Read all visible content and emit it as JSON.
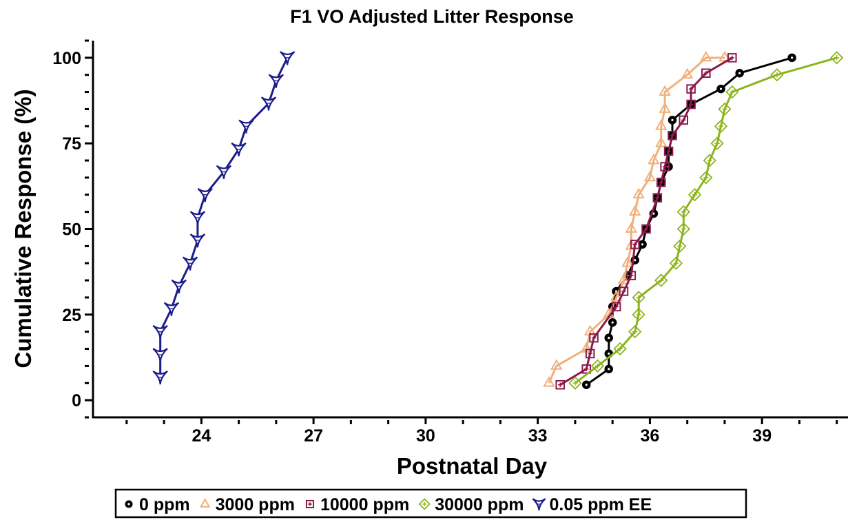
{
  "chart_data": {
    "type": "line",
    "title": "F1 VO Adjusted Litter Response",
    "xlabel": "Postnatal Day",
    "ylabel": "Cumulative Response (%)",
    "xlim": [
      21.1,
      41.3
    ],
    "ylim": [
      -5,
      105
    ],
    "xticks": [
      24,
      27,
      30,
      33,
      36,
      39
    ],
    "xtick_labels": [
      "24",
      "27",
      "30",
      "33",
      "36",
      "39"
    ],
    "yticks": [
      0,
      25,
      50,
      75,
      100
    ],
    "ytick_labels": [
      "0",
      "25",
      "50",
      "75",
      "100"
    ],
    "grid": false,
    "legend_position": "bottom",
    "series": [
      {
        "name": "0 ppm",
        "color": "#000000",
        "marker": "circle",
        "x": [
          34.3,
          34.9,
          34.9,
          34.9,
          35.0,
          35.0,
          35.1,
          35.4,
          35.6,
          35.8,
          35.9,
          36.1,
          36.2,
          36.3,
          36.5,
          36.5,
          36.6,
          36.6,
          37.1,
          37.9,
          38.4,
          39.8
        ],
        "y": [
          4.5,
          9.1,
          13.6,
          18.2,
          22.7,
          27.3,
          31.8,
          36.4,
          40.9,
          45.5,
          50.0,
          54.5,
          59.1,
          63.6,
          68.2,
          72.7,
          77.3,
          81.8,
          86.4,
          90.9,
          95.5,
          100.0
        ]
      },
      {
        "name": "3000 ppm",
        "color": "#f0b07a",
        "marker": "triangle",
        "x": [
          33.3,
          33.5,
          34.3,
          34.4,
          34.9,
          35.1,
          35.3,
          35.4,
          35.5,
          35.5,
          35.6,
          35.7,
          36.0,
          36.1,
          36.3,
          36.3,
          36.4,
          36.4,
          37.0,
          37.5,
          38.0
        ],
        "y": [
          5,
          10,
          15,
          20,
          25,
          30,
          35,
          40,
          45,
          50,
          55,
          60,
          65,
          70,
          75,
          80,
          85,
          90,
          95,
          100,
          100
        ]
      },
      {
        "name": "10000 ppm",
        "color": "#8b1a4a",
        "marker": "square",
        "x": [
          33.6,
          34.3,
          34.4,
          34.5,
          35.1,
          35.3,
          35.5,
          35.6,
          35.9,
          36.2,
          36.3,
          36.4,
          36.5,
          36.6,
          36.9,
          37.1,
          37.1,
          37.5,
          38.2
        ],
        "y": [
          4.5,
          9.1,
          13.6,
          18.2,
          27.3,
          31.8,
          36.4,
          45.5,
          50.0,
          59.1,
          63.6,
          68.2,
          72.7,
          77.3,
          81.8,
          86.4,
          90.9,
          95.5,
          100.0
        ]
      },
      {
        "name": "30000 ppm",
        "color": "#8db31c",
        "marker": "diamond",
        "x": [
          34.0,
          34.6,
          35.2,
          35.6,
          35.7,
          35.7,
          36.3,
          36.7,
          36.8,
          36.9,
          36.9,
          37.2,
          37.5,
          37.6,
          37.8,
          37.9,
          38.0,
          38.2,
          39.4,
          41.0
        ],
        "y": [
          5,
          10,
          15,
          20,
          25,
          30,
          35,
          40,
          45,
          50,
          55,
          60,
          65,
          70,
          75,
          80,
          85,
          90,
          95,
          100
        ]
      },
      {
        "name": "0.05 ppm EE",
        "color": "#1c1c8c",
        "marker": "tri_arrow",
        "x": [
          22.9,
          22.9,
          22.9,
          23.2,
          23.4,
          23.7,
          23.9,
          23.9,
          24.1,
          24.6,
          25.0,
          25.2,
          25.8,
          26.0,
          26.3
        ],
        "y": [
          6.7,
          13.3,
          20.0,
          26.7,
          33.3,
          40.0,
          46.7,
          53.3,
          60.0,
          66.7,
          73.3,
          80.0,
          86.7,
          93.3,
          100.0
        ]
      }
    ]
  }
}
